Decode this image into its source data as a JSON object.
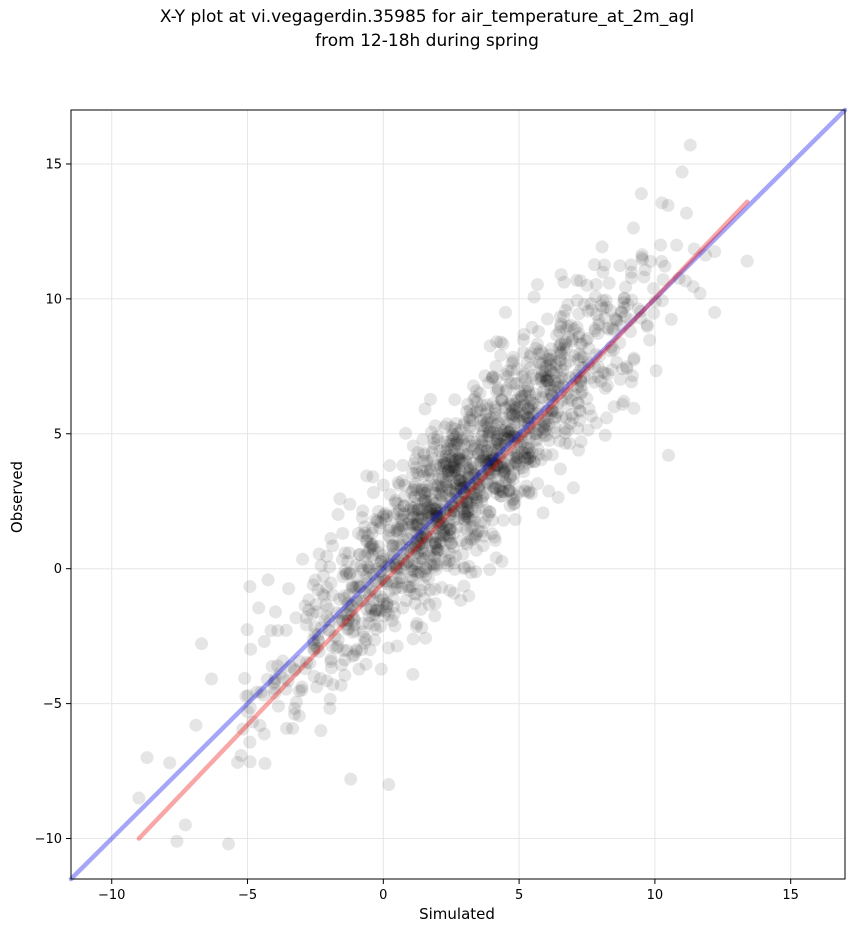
{
  "chart_data": {
    "type": "scatter",
    "title_line1": "X-Y plot at vi.vegagerdin.35985 for air_temperature_at_2m_agl",
    "title_line2": "from 12-18h during spring",
    "xlabel": "Simulated",
    "ylabel": "Observed",
    "xlim": [
      -11.5,
      17
    ],
    "ylim": [
      -11.5,
      17
    ],
    "xticks": [
      -10,
      -5,
      0,
      5,
      10,
      15
    ],
    "yticks": [
      -10,
      -5,
      0,
      5,
      10,
      15
    ],
    "xtick_labels": [
      "−10",
      "−5",
      "0",
      "5",
      "10",
      "15"
    ],
    "ytick_labels": [
      "−10",
      "−5",
      "0",
      "5",
      "10",
      "15"
    ],
    "grid": true,
    "scatter_color": "#000000",
    "scatter_alpha": 0.1,
    "point_count": 1500,
    "points_sample": [
      [
        -9.0,
        -8.5
      ],
      [
        -8.7,
        -7.0
      ],
      [
        -7.6,
        -10.1
      ],
      [
        -6.9,
        -5.8
      ],
      [
        -5.7,
        -10.2
      ],
      [
        -5.0,
        -5.3
      ],
      [
        -4.0,
        -4.2
      ],
      [
        -3.0,
        -4.5
      ],
      [
        -2.3,
        -6.0
      ],
      [
        -1.2,
        -7.8
      ],
      [
        -0.8,
        -3.0
      ],
      [
        0.0,
        3.1
      ],
      [
        0.2,
        -8.0
      ],
      [
        1.0,
        0.8
      ],
      [
        2.0,
        1.5
      ],
      [
        3.0,
        3.0
      ],
      [
        4.0,
        4.0
      ],
      [
        4.5,
        9.5
      ],
      [
        5.0,
        5.5
      ],
      [
        6.0,
        7.5
      ],
      [
        7.0,
        3.0
      ],
      [
        7.5,
        10.5
      ],
      [
        8.5,
        6.0
      ],
      [
        9.5,
        13.9
      ],
      [
        10.5,
        4.2
      ],
      [
        11.0,
        14.7
      ],
      [
        11.3,
        15.7
      ],
      [
        12.2,
        9.5
      ],
      [
        13.4,
        11.4
      ]
    ],
    "lines": [
      {
        "color": "#0000ee",
        "alpha": 0.35,
        "x": [
          -11.5,
          17
        ],
        "y": [
          -11.5,
          17
        ]
      },
      {
        "color": "#ee0000",
        "alpha": 0.35,
        "x": [
          -9.0,
          13.4
        ],
        "y": [
          -10.0,
          13.6
        ]
      }
    ]
  }
}
